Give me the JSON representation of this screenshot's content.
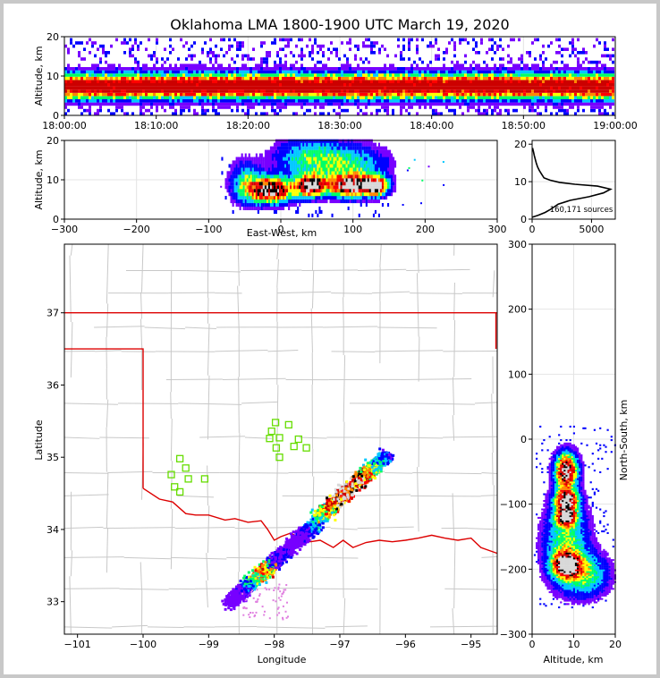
{
  "figure": {
    "title": "Oklahoma LMA 1800-1900 UTC March 19, 2020"
  },
  "panels": {
    "time_altitude": {
      "ylabel": "Altitude, km",
      "yticks": [
        "0",
        "10",
        "20"
      ],
      "xticks": [
        "18:00:00",
        "18:10:00",
        "18:20:00",
        "18:30:00",
        "18:40:00",
        "18:50:00",
        "19:00:00"
      ]
    },
    "ew_altitude": {
      "ylabel": "Altitude, km",
      "xlabel": "East-West, km",
      "yticks": [
        "0",
        "10",
        "20"
      ],
      "xticks": [
        "−300",
        "−200",
        "−100",
        "0",
        "100",
        "200",
        "300"
      ]
    },
    "histogram": {
      "yticks": [
        "0",
        "10",
        "20"
      ],
      "xticks": [
        "0",
        "5000"
      ],
      "annotation": "160,171 sources"
    },
    "map": {
      "xlabel": "Longitude",
      "ylabel": "Latitude",
      "xticks": [
        "−101",
        "−100",
        "−99",
        "−98",
        "−97",
        "−96",
        "−95"
      ],
      "yticks": [
        "33",
        "34",
        "35",
        "36",
        "37"
      ]
    },
    "ns_altitude": {
      "ylabel": "North-South, km",
      "xlabel": "Altitude, km",
      "xticks": [
        "0",
        "10",
        "20"
      ],
      "yticks": [
        "300",
        "200",
        "100",
        "0",
        "−100",
        "−200",
        "−300"
      ]
    }
  },
  "chart_data": [
    {
      "type": "heatmap",
      "title": "Oklahoma LMA 1800-1900 UTC March 19, 2020",
      "panel": "time-altitude",
      "xlabel": "",
      "ylabel": "Altitude, km",
      "xlim": [
        "18:00:00",
        "19:00:00"
      ],
      "ylim": [
        0,
        20
      ],
      "grid": true,
      "core_altitude_km": 7.5
    },
    {
      "type": "heatmap",
      "panel": "east-west vs altitude",
      "xlabel": "East-West, km",
      "ylabel": "Altitude, km",
      "xlim": [
        -300,
        300
      ],
      "ylim": [
        0,
        20
      ],
      "grid": true,
      "source_extent_km": [
        -80,
        150
      ]
    },
    {
      "type": "line",
      "panel": "altitude histogram",
      "xlabel": "",
      "ylabel": "",
      "xlim": [
        0,
        7000
      ],
      "ylim": [
        0,
        21
      ],
      "total_sources": "160,171 sources",
      "x": [
        0,
        500,
        1100,
        1500,
        2200,
        3200,
        4800,
        6000,
        6600,
        5500,
        3600,
        2300,
        1500,
        1000,
        800,
        600,
        450,
        350,
        260,
        180,
        110,
        40
      ],
      "y": [
        0.5,
        1,
        1.8,
        2.5,
        4,
        5,
        6,
        7,
        8,
        8.8,
        9.3,
        9.8,
        10.4,
        11,
        12,
        13,
        14,
        15,
        16,
        17,
        18,
        19
      ]
    },
    {
      "type": "scatter",
      "panel": "plan view map",
      "xlabel": "Longitude",
      "ylabel": "Latitude",
      "xlim": [
        -101.2,
        -94.6
      ],
      "ylim": [
        32.55,
        37.95
      ],
      "grid": true,
      "station_marker_color": "#66dd00",
      "stations": [
        {
          "x": -97.98,
          "y": 35.48
        },
        {
          "x": -97.78,
          "y": 35.45
        },
        {
          "x": -98.04,
          "y": 35.36
        },
        {
          "x": -98.07,
          "y": 35.26
        },
        {
          "x": -97.92,
          "y": 35.27
        },
        {
          "x": -97.63,
          "y": 35.25
        },
        {
          "x": -97.7,
          "y": 35.15
        },
        {
          "x": -97.51,
          "y": 35.13
        },
        {
          "x": -97.97,
          "y": 35.13
        },
        {
          "x": -97.92,
          "y": 35.0
        },
        {
          "x": -99.44,
          "y": 34.98
        },
        {
          "x": -99.35,
          "y": 34.85
        },
        {
          "x": -99.57,
          "y": 34.76
        },
        {
          "x": -99.31,
          "y": 34.7
        },
        {
          "x": -99.06,
          "y": 34.7
        },
        {
          "x": -99.52,
          "y": 34.59
        },
        {
          "x": -99.44,
          "y": 34.52
        }
      ],
      "storm_band": {
        "from": [
          -98.7,
          33.0
        ],
        "to": [
          -96.3,
          35.0
        ]
      }
    },
    {
      "type": "heatmap",
      "panel": "altitude vs north-south",
      "xlabel": "Altitude, km",
      "ylabel": "North-South, km",
      "xlim": [
        0,
        20
      ],
      "ylim": [
        -300,
        300
      ],
      "grid": true,
      "source_extent_km": [
        -255,
        20
      ]
    }
  ],
  "colors": {
    "state_border": "#dd0000",
    "county_lines": "#c8c8c8",
    "station_markers": "#66dd00",
    "density_scale": [
      "#7700ff",
      "#0000ff",
      "#00c8ff",
      "#00ff66",
      "#ffff00",
      "#ff8800",
      "#ff0000",
      "#cc0000",
      "#000000",
      "#d8d8d8"
    ]
  }
}
